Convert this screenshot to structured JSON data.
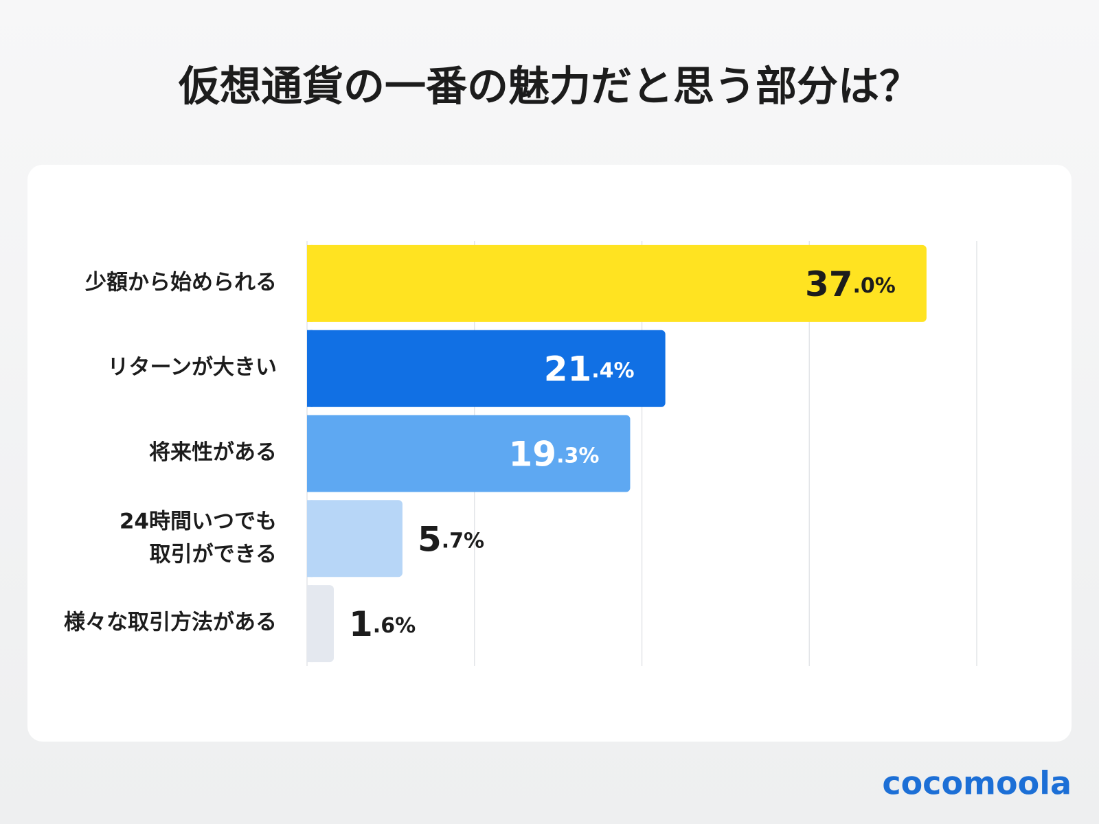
{
  "chart_data": {
    "type": "bar",
    "orientation": "horizontal",
    "title": "仮想通貨の一番の魅力だと思う部分は？",
    "categories": [
      "少額から始められる",
      "リターンが大きい",
      "将来性がある",
      "24時間いつでも\n取引ができる",
      "様々な取引方法がある"
    ],
    "values": [
      37.0,
      21.4,
      19.3,
      5.7,
      1.6
    ],
    "value_labels": [
      "37.0%",
      "21.4%",
      "19.3%",
      "5.7%",
      "1.6%"
    ],
    "colors": [
      "#ffe321",
      "#1170e4",
      "#5ea8f2",
      "#b7d6f7",
      "#e4e8ef"
    ],
    "xlim": [
      0,
      40
    ],
    "xticks": [
      0,
      10,
      20,
      30,
      40
    ],
    "grid": true
  },
  "logo": "cocomoola"
}
